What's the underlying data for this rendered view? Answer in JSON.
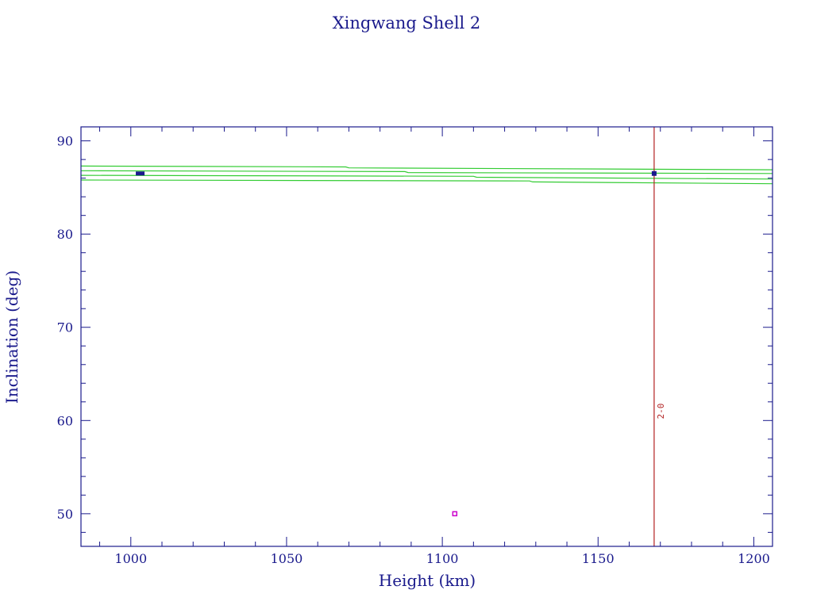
{
  "chart_data": {
    "type": "line",
    "title": "Xingwang Shell 2",
    "xlabel": "Height (km)",
    "ylabel": "Inclination (deg)",
    "xlim": [
      984,
      1206
    ],
    "ylim": [
      46.5,
      91.5
    ],
    "x_ticks": [
      1000,
      1050,
      1100,
      1150,
      1200
    ],
    "x_tick_labels": [
      "1000",
      "1050",
      "1100",
      "1150",
      "1200"
    ],
    "y_ticks": [
      50,
      60,
      70,
      80,
      90
    ],
    "y_tick_labels": [
      "50",
      "60",
      "70",
      "80",
      "90"
    ],
    "grid": false,
    "legend": "none",
    "colors": {
      "frame": "#1a1a8c",
      "title": "#1a1a8c",
      "band": "#33cc33",
      "marker_line": "#b22222",
      "markers": "#1a1a8c",
      "magenta_marker": "#cc00cc"
    },
    "band_series": [
      {
        "x": [
          984,
          1069,
          1070,
          1206
        ],
        "y": [
          87.3,
          87.2,
          87.1,
          86.9
        ]
      },
      {
        "x": [
          984,
          1088,
          1089,
          1206
        ],
        "y": [
          86.8,
          86.7,
          86.6,
          86.5
        ]
      },
      {
        "x": [
          984,
          1110,
          1111,
          1206
        ],
        "y": [
          86.3,
          86.2,
          86.1,
          85.9
        ]
      },
      {
        "x": [
          984,
          1128,
          1129,
          1206
        ],
        "y": [
          85.8,
          85.7,
          85.6,
          85.4
        ]
      }
    ],
    "vertical_line": {
      "x": 1168,
      "label": "2-0",
      "label_y": 61
    },
    "points": [
      {
        "x": 1003,
        "y": 86.5
      },
      {
        "x": 1168,
        "y": 86.5
      },
      {
        "x": 1104,
        "y": 50
      }
    ]
  }
}
